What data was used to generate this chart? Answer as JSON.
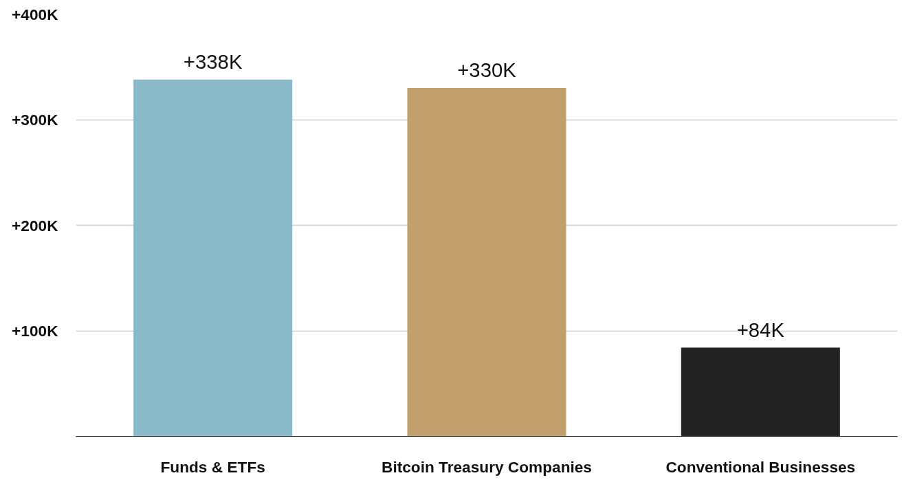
{
  "chart_data": {
    "type": "bar",
    "categories": [
      "Funds & ETFs",
      "Bitcoin Treasury Companies",
      "Conventional Businesses"
    ],
    "values": [
      338,
      330,
      84
    ],
    "colors": [
      "#8ab9c9",
      "#c1a06b",
      "#232323"
    ],
    "value_labels": [
      "+338K",
      "+330K",
      "+84K"
    ],
    "ylim": [
      0,
      400
    ],
    "yticks": [
      {
        "value": 100,
        "label": "+100K"
      },
      {
        "value": 200,
        "label": "+200K"
      },
      {
        "value": 300,
        "label": "+300K"
      },
      {
        "value": 400,
        "label": "+400K"
      }
    ],
    "grid": "y"
  }
}
